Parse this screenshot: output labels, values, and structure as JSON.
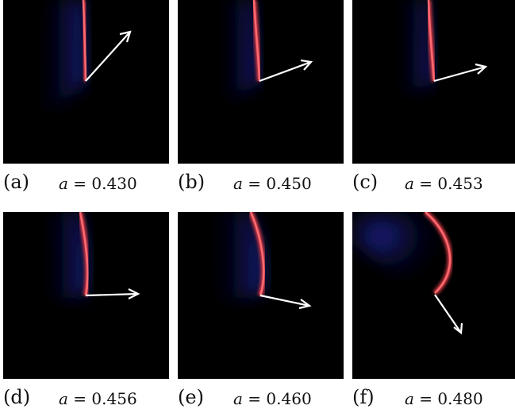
{
  "figure": {
    "panels": [
      {
        "id": "a",
        "label": "(a)",
        "var": "a",
        "eq": " = ",
        "value": "0.430"
      },
      {
        "id": "b",
        "label": "(b)",
        "var": "a",
        "eq": " = ",
        "value": "0.450"
      },
      {
        "id": "c",
        "label": "(c)",
        "var": "a",
        "eq": " = ",
        "value": "0.453"
      },
      {
        "id": "d",
        "label": "(d)",
        "var": "a",
        "eq": " = ",
        "value": "0.456"
      },
      {
        "id": "e",
        "label": "(e)",
        "var": "a",
        "eq": " = ",
        "value": "0.460"
      },
      {
        "id": "f",
        "label": "(f)",
        "var": "a",
        "eq": " = ",
        "value": "0.480"
      }
    ],
    "colors": {
      "background": "#000000",
      "front": "#e8414c",
      "glow": "#1a1f8a",
      "arrow": "#ffffff"
    }
  }
}
